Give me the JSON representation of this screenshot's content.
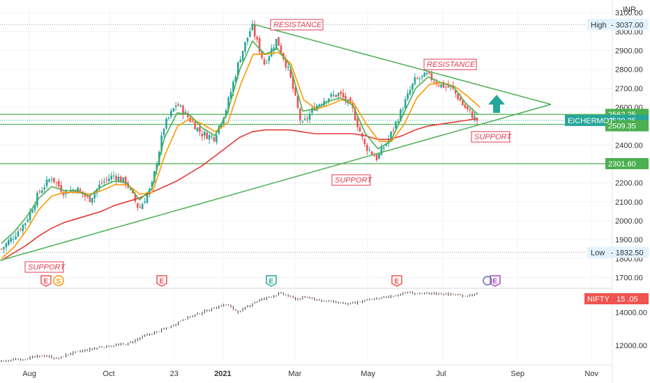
{
  "colors": {
    "up": "#26a69a",
    "down": "#ef5350",
    "ma_fast": "#4caf50",
    "ma_mid": "#ff9800",
    "ma_slow": "#e53935",
    "trendline": "#4caf50",
    "level": "#4caf50",
    "annotation": "#e53950",
    "arrow": "#26a69a",
    "grid": "#f0f3fa"
  },
  "price_scale": {
    "currency": "INR",
    "min": 1650,
    "max": 3130
  },
  "nifty_scale": {
    "currency": "INR",
    "min": 11000,
    "max": 15200
  },
  "chart_data": [
    {
      "type": "candlestick",
      "symbol": "EICHERMOT",
      "x_ticks": [
        "Aug",
        "Oct",
        "23",
        "2021",
        "Mar",
        "May",
        "Jul",
        "Sep",
        "Nov"
      ],
      "y_ticks": [
        "3100.00",
        "3000.00",
        "2900.00",
        "2800.00",
        "2700.00",
        "2600.00",
        "2500.00",
        "2400.00",
        "2300.00",
        "2200.00",
        "2100.00",
        "2000.00",
        "1900.00",
        "1800.00",
        "1700.00"
      ],
      "high": {
        "label": "High",
        "value": "3037.00"
      },
      "low": {
        "label": "Low",
        "value": "1832.50"
      },
      "last_price": "2530.25",
      "levels": [
        "2562.25",
        "2509.35",
        "2301.60"
      ],
      "close_path": [
        1850,
        1920,
        2000,
        2150,
        2230,
        2150,
        2170,
        2110,
        2200,
        2240,
        2200,
        2060,
        2180,
        2500,
        2620,
        2540,
        2460,
        2440,
        2600,
        2850,
        3030,
        2830,
        2960,
        2780,
        2500,
        2600,
        2650,
        2670,
        2600,
        2400,
        2330,
        2440,
        2590,
        2740,
        2770,
        2720,
        2700,
        2600,
        2530
      ],
      "ma_fast": [
        1880,
        1940,
        2020,
        2120,
        2180,
        2160,
        2160,
        2130,
        2180,
        2210,
        2200,
        2110,
        2170,
        2440,
        2570,
        2560,
        2490,
        2450,
        2570,
        2800,
        2950,
        2880,
        2910,
        2820,
        2580,
        2590,
        2630,
        2650,
        2610,
        2460,
        2380,
        2420,
        2560,
        2700,
        2760,
        2730,
        2710,
        2620,
        2560
      ],
      "ma_mid": [
        1800,
        1860,
        1950,
        2060,
        2130,
        2150,
        2150,
        2140,
        2160,
        2190,
        2190,
        2140,
        2150,
        2350,
        2500,
        2540,
        2510,
        2470,
        2520,
        2720,
        2880,
        2880,
        2890,
        2830,
        2640,
        2590,
        2610,
        2640,
        2620,
        2510,
        2420,
        2420,
        2510,
        2650,
        2720,
        2730,
        2710,
        2660,
        2600
      ],
      "ma_slow": [
        1790,
        1830,
        1870,
        1920,
        1960,
        1990,
        2010,
        2030,
        2050,
        2080,
        2100,
        2120,
        2150,
        2180,
        2210,
        2250,
        2290,
        2340,
        2390,
        2440,
        2470,
        2480,
        2480,
        2480,
        2470,
        2460,
        2460,
        2460,
        2460,
        2450,
        2430,
        2430,
        2450,
        2480,
        2500,
        2510,
        2520,
        2530,
        2540
      ],
      "annotations": [
        {
          "text": "RESISTANCE",
          "price": 3037
        },
        {
          "text": "RESISTANCE",
          "price": 2830
        },
        {
          "text": "SUPPORT",
          "price": 2250
        },
        {
          "text": "SUPPORT",
          "price": 2430
        },
        {
          "text": "SUPPORT",
          "price": 1780
        }
      ],
      "events": [
        "E",
        "S",
        "E",
        "E",
        "E",
        "E"
      ]
    },
    {
      "type": "line",
      "symbol": "NIFTY",
      "y_ticks": [
        "14000.00",
        "12000.00"
      ],
      "last_value": "15 .05",
      "values": [
        11050,
        11150,
        11250,
        11400,
        11200,
        11550,
        11700,
        11900,
        12000,
        12100,
        12500,
        12800,
        13100,
        13600,
        13900,
        14200,
        14500,
        14000,
        14600,
        14900,
        15150,
        14800,
        14900,
        14700,
        14600,
        14500,
        14700,
        14850,
        15000,
        15200,
        15100,
        15150,
        15100,
        15000,
        15100
      ]
    }
  ]
}
